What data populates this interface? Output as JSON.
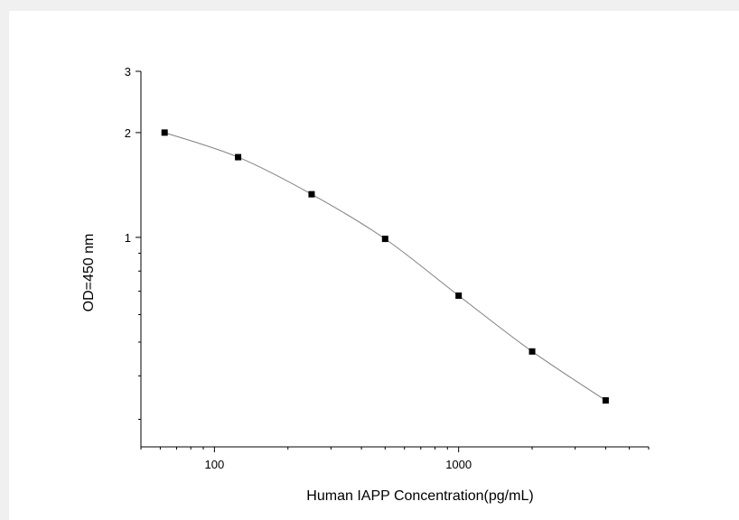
{
  "chart_data": {
    "type": "line",
    "title": "",
    "xlabel": "Human IAPP  Concentration(pg/mL)",
    "ylabel": "OD=450 nm",
    "x_scale": "log",
    "y_scale": "log",
    "xlim": [
      50,
      6000
    ],
    "ylim": [
      0.25,
      3
    ],
    "x_ticks": [
      100,
      1000
    ],
    "x_tick_labels": [
      "100",
      "1000"
    ],
    "y_ticks": [
      1,
      2,
      3
    ],
    "y_tick_labels": [
      "1",
      "2",
      "3"
    ],
    "grid": false,
    "legend": "none",
    "series": [
      {
        "x": [
          62.5,
          125,
          250,
          500,
          1000,
          2000,
          4000
        ],
        "y": [
          2.0,
          1.7,
          1.33,
          0.99,
          0.68,
          0.47,
          0.34
        ]
      }
    ],
    "colors": {
      "line": "#808080",
      "marker": "#000000",
      "axis": "#000000"
    }
  }
}
